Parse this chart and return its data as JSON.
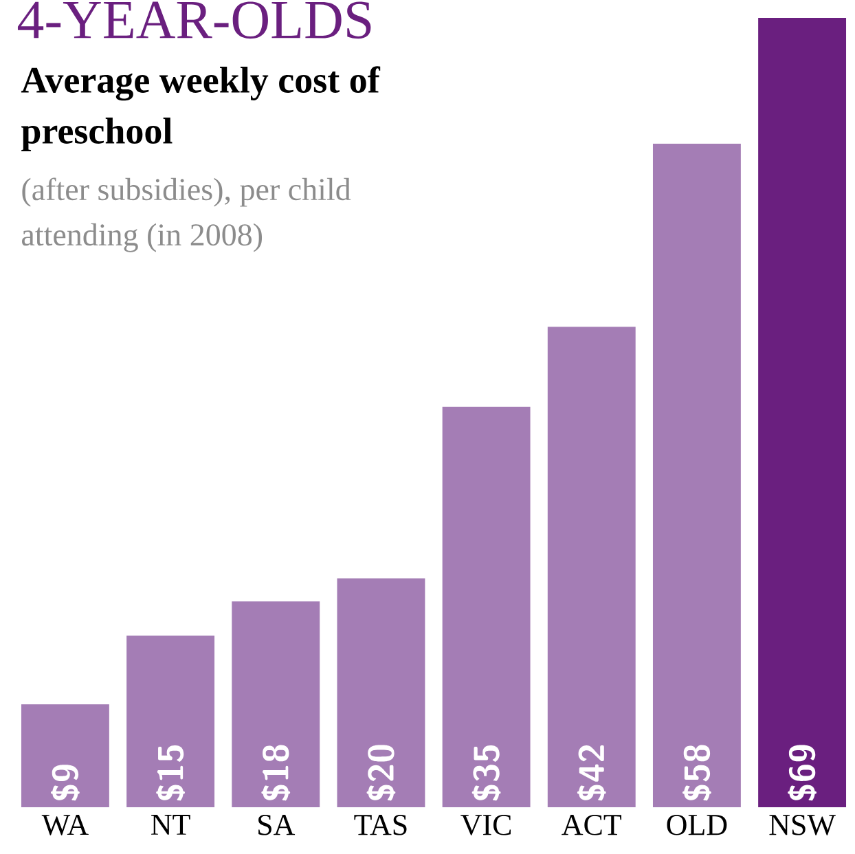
{
  "chart_data": {
    "type": "bar",
    "title": "4-YEAR-OLDS",
    "subtitle": "Average weekly cost of preschool",
    "annotations": [
      "(after subsidies), per child attending (in 2008)"
    ],
    "categories": [
      "WA",
      "NT",
      "SA",
      "TAS",
      "VIC",
      "ACT",
      "OLD",
      "NSW"
    ],
    "values": [
      9,
      15,
      18,
      20,
      35,
      42,
      58,
      69
    ],
    "value_labels": [
      "$9",
      "$15",
      "$18",
      "$20",
      "$35",
      "$42",
      "$58",
      "$69"
    ],
    "colors": [
      "#a47db5",
      "#a47db5",
      "#a47db5",
      "#a47db5",
      "#a47db5",
      "#a47db5",
      "#a47db5",
      "#6a1f7f"
    ]
  }
}
